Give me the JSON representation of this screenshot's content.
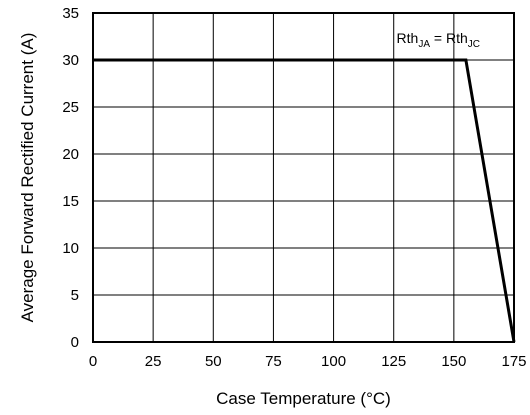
{
  "chart_data": {
    "type": "line",
    "title": "",
    "xlabel": "Case Temperature (°C)",
    "ylabel": "Average Forward Rectified Current (A)",
    "xlim": [
      0,
      175
    ],
    "ylim": [
      0,
      35
    ],
    "xticks": [
      0,
      25,
      50,
      75,
      100,
      125,
      150,
      175
    ],
    "yticks": [
      0,
      5,
      10,
      15,
      20,
      25,
      30,
      35
    ],
    "grid": true,
    "legend": "none",
    "series": [
      {
        "x": [
          0,
          155,
          175
        ],
        "y": [
          30,
          30,
          0
        ],
        "color": "#000000"
      }
    ],
    "annotation": {
      "base1": "Rth",
      "sub1": "JA",
      "eq": " = ",
      "base2": "Rth",
      "sub2": "JC"
    }
  }
}
